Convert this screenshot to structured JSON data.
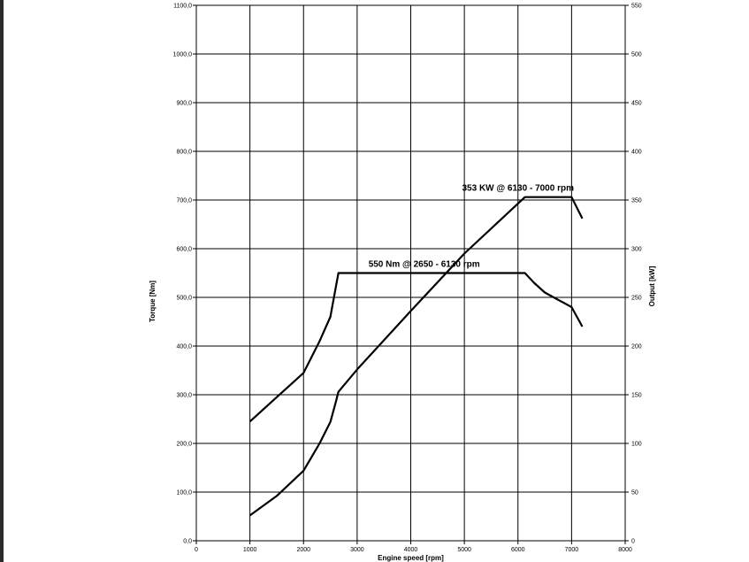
{
  "chart_data": {
    "type": "line",
    "x_axis": {
      "label": "Engine speed [rpm]",
      "range": [
        0,
        8000
      ],
      "ticks": [
        0,
        1000,
        2000,
        3000,
        4000,
        5000,
        6000,
        7000,
        8000
      ],
      "tick_labels": [
        "0",
        "1000",
        "2000",
        "3000",
        "4000",
        "5000",
        "6000",
        "7000",
        "8000"
      ]
    },
    "y_left": {
      "label": "Torque [Nm]",
      "range": [
        0,
        1100
      ],
      "ticks": [
        0,
        100,
        200,
        300,
        400,
        500,
        600,
        700,
        800,
        900,
        1000,
        1100
      ],
      "tick_labels": [
        "0,0",
        "100,0",
        "200,0",
        "300,0",
        "400,0",
        "500,0",
        "600,0",
        "700,0",
        "800,0",
        "900,0",
        "1000,0",
        "1100,0"
      ]
    },
    "y_right": {
      "label": "Output [kW]",
      "range": [
        0,
        550
      ],
      "ticks": [
        0,
        50,
        100,
        150,
        200,
        250,
        300,
        350,
        400,
        450,
        500,
        550
      ],
      "tick_labels": [
        "0",
        "50",
        "100",
        "150",
        "200",
        "250",
        "300",
        "350",
        "400",
        "450",
        "500",
        "550"
      ]
    },
    "grid": true,
    "series": [
      {
        "axis": "left",
        "x": [
          1000,
          1500,
          2000,
          2300,
          2500,
          2650,
          6130,
          6300,
          6500,
          7000,
          7200
        ],
        "y": [
          245,
          295,
          345,
          410,
          460,
          550,
          550,
          530,
          510,
          480,
          440
        ]
      },
      {
        "axis": "right",
        "x": [
          1000,
          1500,
          2000,
          2300,
          2500,
          2600,
          2650,
          3000,
          4000,
          5000,
          6130,
          7000,
          7200
        ],
        "y": [
          26,
          46,
          72,
          100,
          122,
          142,
          153,
          176,
          236,
          295,
          353,
          353,
          331
        ]
      }
    ],
    "annotations": [
      {
        "text": "550 Nm @ 2650 - 6130 rpm",
        "x": 4250,
        "y_left": 563
      },
      {
        "text": "353 KW @ 6130 - 7000 rpm",
        "x": 6000,
        "y_left": 719
      }
    ]
  }
}
